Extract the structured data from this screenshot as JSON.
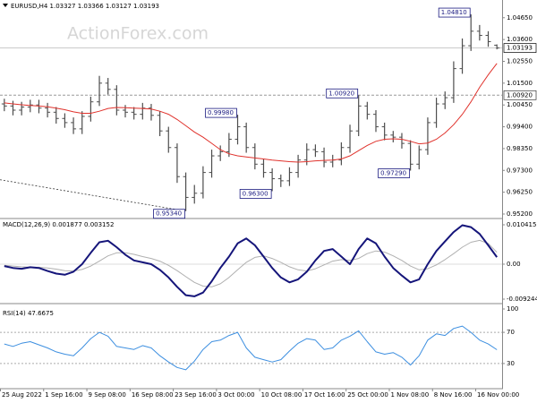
{
  "watermark": "ActionForex.com",
  "chart_data": [
    {
      "type": "ohlc",
      "title": "EURUSD,H4 1.03327 1.03366 1.03127 1.03193",
      "color": "#4d4d4d",
      "ylim": [
        0.9507,
        1.0533
      ],
      "yticks": [
        {
          "value": 0.952,
          "label": "0.95200"
        },
        {
          "value": 0.9625,
          "label": "0.96250"
        },
        {
          "value": 0.973,
          "label": "0.97300"
        },
        {
          "value": 0.9835,
          "label": "0.98350"
        },
        {
          "value": 0.994,
          "label": "0.99400"
        },
        {
          "value": 1.0045,
          "label": "1.00450"
        },
        {
          "value": 1.015,
          "label": "1.01500"
        },
        {
          "value": 1.0255,
          "label": "1.02550"
        },
        {
          "value": 1.036,
          "label": "1.03600"
        },
        {
          "value": 1.0465,
          "label": "1.04650"
        }
      ],
      "open": [
        1.005,
        1.004,
        1.002,
        1.0035,
        1.0045,
        1.003,
        1.001,
        0.998,
        0.996,
        0.993,
        0.999,
        1.006,
        1.015,
        1.012,
        1.002,
        1.001,
        1.0,
        1.003,
        0.9995,
        0.992,
        0.984,
        0.97,
        0.96,
        0.962,
        0.972,
        0.98,
        0.982,
        0.988,
        0.994,
        0.984,
        0.976,
        0.972,
        0.969,
        0.968,
        0.972,
        0.978,
        0.983,
        0.982,
        0.977,
        0.978,
        0.984,
        0.992,
        1.004,
        1.0,
        0.994,
        0.99,
        0.989,
        0.986,
        0.976,
        0.983,
        0.996,
        1.005,
        1.008,
        1.022,
        1.033,
        1.04,
        1.038,
        1.03327
      ],
      "high": [
        1.0075,
        1.0065,
        1.006,
        1.007,
        1.007,
        1.0055,
        1.0035,
        1.0005,
        0.9985,
        1.0015,
        1.0085,
        1.0185,
        1.0175,
        1.014,
        1.0045,
        1.0035,
        1.0055,
        1.005,
        1.0015,
        0.994,
        0.986,
        0.972,
        0.966,
        0.975,
        0.983,
        0.985,
        0.991,
        0.9998,
        0.996,
        0.986,
        0.9785,
        0.974,
        0.971,
        0.9745,
        0.9805,
        0.986,
        0.9855,
        0.984,
        0.9805,
        0.9865,
        0.995,
        1.0092,
        1.006,
        1.002,
        0.996,
        0.992,
        0.991,
        0.9875,
        0.985,
        0.9985,
        1.008,
        1.011,
        1.0255,
        1.0365,
        1.0481,
        1.043,
        1.04,
        1.03366
      ],
      "low": [
        1.0015,
        0.9995,
        0.9995,
        1.001,
        1.0005,
        0.9985,
        0.9955,
        0.9935,
        0.9905,
        0.9905,
        0.9965,
        1.004,
        1.0095,
        0.9995,
        0.9985,
        0.9975,
        0.9975,
        0.997,
        0.9895,
        0.9815,
        0.967,
        0.9534,
        0.957,
        0.9595,
        0.9695,
        0.9775,
        0.9795,
        0.9855,
        0.9815,
        0.9735,
        0.9695,
        0.963,
        0.965,
        0.9655,
        0.9695,
        0.9755,
        0.9795,
        0.9745,
        0.9745,
        0.9755,
        0.9815,
        0.9895,
        0.9975,
        0.9915,
        0.9875,
        0.9865,
        0.9835,
        0.9729,
        0.9735,
        0.9805,
        0.9935,
        1.0025,
        1.0055,
        1.0195,
        1.0305,
        1.0355,
        1.0325,
        1.03127
      ],
      "close": [
        1.004,
        1.002,
        1.0035,
        1.0045,
        1.003,
        1.001,
        0.998,
        0.996,
        0.993,
        0.999,
        1.006,
        1.015,
        1.012,
        1.002,
        1.001,
        1.0,
        1.003,
        0.9995,
        0.992,
        0.984,
        0.97,
        0.96,
        0.962,
        0.972,
        0.98,
        0.982,
        0.988,
        0.994,
        0.984,
        0.976,
        0.972,
        0.969,
        0.968,
        0.972,
        0.978,
        0.983,
        0.982,
        0.977,
        0.978,
        0.984,
        0.992,
        1.004,
        1.0,
        0.994,
        0.99,
        0.989,
        0.986,
        0.976,
        0.983,
        0.996,
        1.005,
        1.008,
        1.022,
        1.033,
        1.04,
        1.038,
        1.035,
        1.03193
      ],
      "ma": {
        "color": "#e0322c",
        "values": [
          1.0055,
          1.005,
          1.0046,
          1.0043,
          1.004,
          1.0036,
          1.003,
          1.0022,
          1.0012,
          1.0005,
          1.0005,
          1.0015,
          1.0028,
          1.0033,
          1.0032,
          1.003,
          1.0028,
          1.0025,
          1.0015,
          1.0,
          0.9975,
          0.9945,
          0.9915,
          0.989,
          0.986,
          0.983,
          0.981,
          0.98,
          0.9795,
          0.979,
          0.9785,
          0.978,
          0.9776,
          0.9772,
          0.977,
          0.9772,
          0.9776,
          0.9778,
          0.978,
          0.9785,
          0.98,
          0.9825,
          0.985,
          0.987,
          0.988,
          0.9882,
          0.988,
          0.987,
          0.9858,
          0.9862,
          0.988,
          0.991,
          0.995,
          1.0,
          1.006,
          1.013,
          1.019,
          1.0245
        ]
      },
      "trendline": {
        "x": [
          0,
          21
        ],
        "values": [
          0.9685,
          0.9534
        ]
      },
      "level": {
        "value": 1.0092,
        "label": "1.00920"
      },
      "current": {
        "value": 1.03193,
        "label": "1.03193"
      },
      "annotations": [
        {
          "index": 54,
          "value": 1.0481,
          "label": "1.04810",
          "side": "high"
        },
        {
          "index": 27,
          "value": 0.9998,
          "label": "0.99980",
          "side": "high"
        },
        {
          "index": 41,
          "value": 1.0092,
          "label": "1.00920",
          "side": "high"
        },
        {
          "index": 31,
          "value": 0.963,
          "label": "0.96300",
          "side": "low"
        },
        {
          "index": 47,
          "value": 0.9729,
          "label": "0.97290",
          "side": "low"
        },
        {
          "index": 21,
          "value": 0.9534,
          "label": "0.95340",
          "side": "low"
        }
      ]
    },
    {
      "type": "line",
      "title": "MACD(12,26,9) 0.001877 0.003152",
      "ylim": [
        -0.00995,
        0.0116
      ],
      "yticks": [
        0.010415,
        {
          "value": 0,
          "label": "0.00"
        },
        -0.009244
      ],
      "series": [
        {
          "color": "#15157a",
          "width": 2,
          "values": [
            -0.0005,
            -0.001,
            -0.0012,
            -0.0008,
            -0.001,
            -0.0018,
            -0.0025,
            -0.0028,
            -0.002,
            0.0,
            0.003,
            0.0058,
            0.0062,
            0.0045,
            0.0025,
            0.001,
            0.0005,
            0.0,
            -0.0015,
            -0.0035,
            -0.006,
            -0.0082,
            -0.0085,
            -0.0075,
            -0.0045,
            -0.001,
            0.002,
            0.0055,
            0.0068,
            0.005,
            0.002,
            -0.001,
            -0.0035,
            -0.0048,
            -0.004,
            -0.002,
            0.001,
            0.0035,
            0.004,
            0.002,
            0.0,
            0.004,
            0.0068,
            0.0055,
            0.002,
            -0.001,
            -0.003,
            -0.0048,
            -0.004,
            0.0,
            0.0035,
            0.006,
            0.0085,
            0.0103,
            0.0098,
            0.008,
            0.005,
            0.001877
          ]
        },
        {
          "color": "#b0b0b0",
          "width": 1,
          "values": [
            -0.0003,
            -0.0005,
            -0.0007,
            -0.0008,
            -0.0008,
            -0.001,
            -0.0013,
            -0.0017,
            -0.0018,
            -0.0014,
            -0.0005,
            0.0008,
            0.0022,
            0.003,
            0.003,
            0.0026,
            0.002,
            0.0015,
            0.0008,
            -0.0003,
            -0.0017,
            -0.0033,
            -0.0048,
            -0.0058,
            -0.006,
            -0.0052,
            -0.0035,
            -0.0015,
            0.0005,
            0.0018,
            0.0022,
            0.0015,
            0.0005,
            -0.0007,
            -0.0015,
            -0.0018,
            -0.0012,
            -0.0002,
            0.0008,
            0.0012,
            0.001,
            0.0015,
            0.0028,
            0.0035,
            0.0032,
            0.0022,
            0.001,
            -0.0005,
            -0.0015,
            -0.0012,
            -0.0002,
            0.0012,
            0.0028,
            0.0045,
            0.0058,
            0.0063,
            0.0055,
            0.003152
          ]
        }
      ]
    },
    {
      "type": "line",
      "title": "RSI(14) 47.6675",
      "ylim": [
        0,
        100
      ],
      "yticks": [
        100,
        70,
        30
      ],
      "levels": [
        70,
        30
      ],
      "categories": [
        "25 Aug 2022",
        null,
        null,
        null,
        null,
        "1 Sep 16:00",
        null,
        null,
        null,
        null,
        "9 Sep 08:00",
        null,
        null,
        null,
        null,
        "16 Sep 08:00",
        null,
        null,
        null,
        null,
        "23 Sep 16:00",
        null,
        null,
        null,
        null,
        "3 Oct 00:00",
        null,
        null,
        null,
        null,
        "10 Oct 08:00",
        null,
        null,
        null,
        null,
        "17 Oct 16:00",
        null,
        null,
        null,
        null,
        "25 Oct 00:00",
        null,
        null,
        null,
        null,
        "1 Nov 08:00",
        null,
        null,
        null,
        null,
        "8 Nov 16:00",
        null,
        null,
        null,
        null,
        "16 Nov 00:00",
        null,
        null
      ],
      "series": [
        {
          "color": "#3d8fe0",
          "width": 1,
          "values": [
            55,
            52,
            56,
            58,
            54,
            50,
            45,
            42,
            40,
            50,
            62,
            70,
            65,
            52,
            50,
            48,
            53,
            50,
            40,
            32,
            25,
            22,
            33,
            48,
            58,
            60,
            66,
            70,
            50,
            38,
            35,
            32,
            35,
            46,
            56,
            62,
            60,
            48,
            50,
            60,
            65,
            72,
            58,
            45,
            42,
            44,
            38,
            28,
            40,
            60,
            68,
            66,
            75,
            78,
            70,
            60,
            55,
            47.6675
          ]
        }
      ]
    }
  ]
}
